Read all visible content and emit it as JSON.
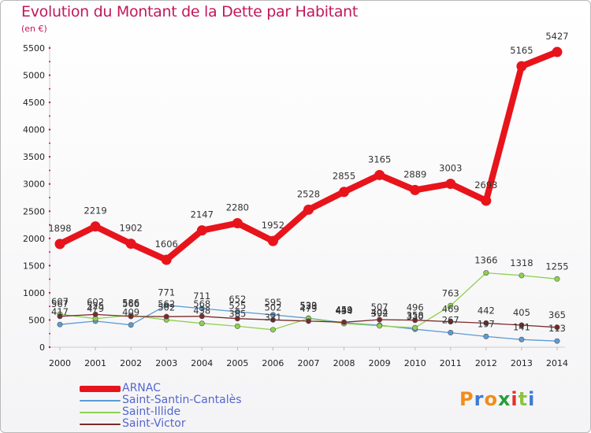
{
  "header": {
    "title": "Evolution du Montant de la Dette par Habitant",
    "subtitle": "(en €)"
  },
  "logo": {
    "text": "Proxiti",
    "colors": [
      "#f28c1c",
      "#3a7bd5",
      "#f28c1c",
      "#2a9d3a",
      "#e2312d",
      "#8bc53f",
      "#3a7bd5"
    ]
  },
  "chart_data": {
    "type": "line",
    "title": "Evolution du Montant de la Dette par Habitant",
    "subtitle": "(en €)",
    "x": [
      2000,
      2001,
      2002,
      2003,
      2004,
      2005,
      2006,
      2007,
      2008,
      2009,
      2010,
      2011,
      2012,
      2013,
      2014
    ],
    "ylim": [
      0,
      5500
    ],
    "yticks": [
      0,
      500,
      1000,
      1500,
      2000,
      2500,
      3000,
      3500,
      4000,
      4500,
      5000,
      5500
    ],
    "grid": false,
    "legend": "bottom-left",
    "series": [
      {
        "name": "ARNAC",
        "color": "#e8141b",
        "emphasis": true,
        "values": [
          1898,
          2219,
          1902,
          1606,
          2147,
          2280,
          1952,
          2528,
          2855,
          3165,
          2889,
          3003,
          2693,
          5165,
          5427
        ],
        "labels": [
          "1898",
          "2219",
          "1902",
          "1606",
          "2147",
          "2280",
          "1952",
          "2528",
          "2855",
          "3165",
          "2889",
          "3003",
          "2693",
          "5165",
          "5427"
        ]
      },
      {
        "name": "Saint-Santin-Cantalès",
        "color": "#5b9bd5",
        "values": [
          417,
          479,
          409,
          771,
          711,
          652,
          595,
          533,
          449,
          404,
          330,
          267,
          197,
          141,
          113
        ],
        "labels": [
          "417",
          "479",
          "409",
          "771",
          "711",
          "652",
          "595",
          "533",
          "449",
          "404",
          "330",
          "267",
          "197",
          "141",
          "113"
        ]
      },
      {
        "name": "Saint-Illide",
        "color": "#8fd14f",
        "values": [
          607,
          525,
          586,
          502,
          438,
          385,
          321,
          529,
          434,
          392,
          358,
          763,
          1366,
          1318,
          1255
        ],
        "labels": [
          "607",
          "525",
          "586",
          "502",
          "438",
          "385",
          "321",
          "529",
          "434",
          "392",
          "358",
          "763",
          "1366",
          "1318",
          "1255"
        ]
      },
      {
        "name": "Saint-Victor",
        "color": "#7a2a2a",
        "values": [
          567,
          602,
          566,
          562,
          568,
          525,
          502,
          479,
          459,
          507,
          496,
          469,
          442,
          405,
          365
        ],
        "labels": [
          "567",
          "602",
          "566",
          "562",
          "568",
          "525",
          "502",
          "479",
          "459",
          "507",
          "496",
          "469",
          "442",
          "405",
          "365"
        ]
      }
    ]
  }
}
